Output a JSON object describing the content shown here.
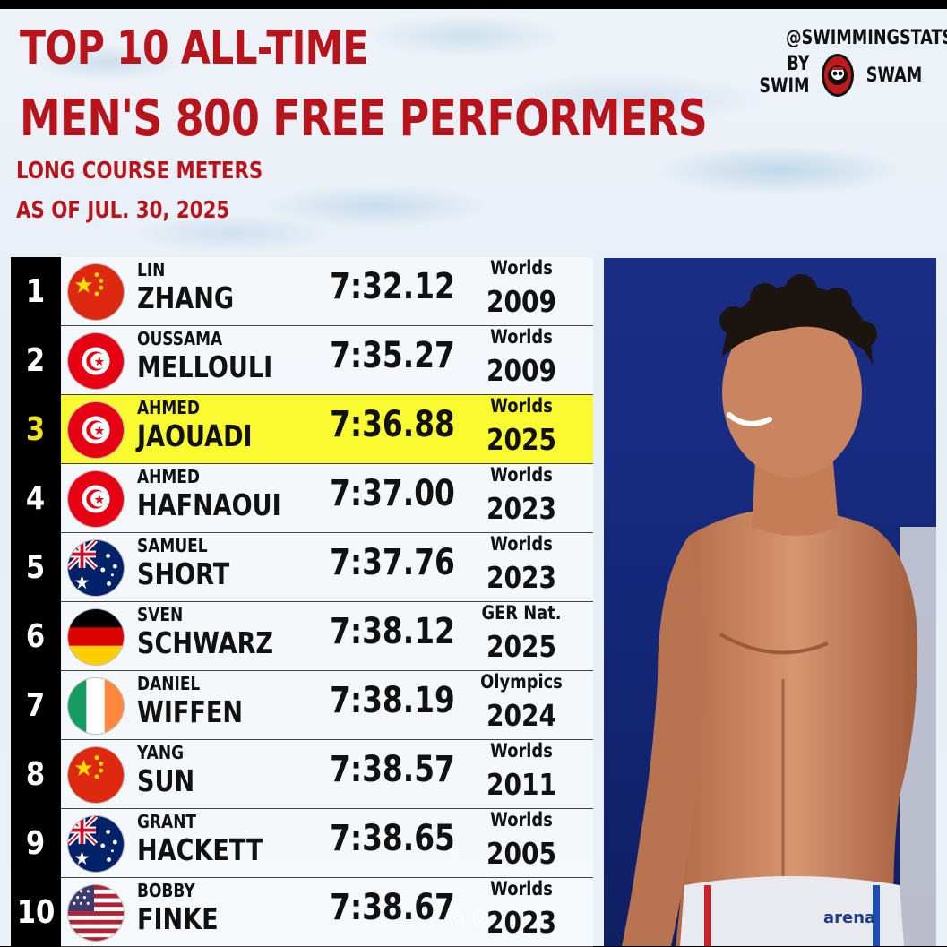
{
  "header": {
    "title_line1": "TOP 10 ALL-TIME",
    "title_line2": "MEN'S 800 FREE PERFORMERS",
    "subtitle_line1": "LONG COURSE METERS",
    "subtitle_line2": "AS OF JUL. 30, 2025"
  },
  "brand": {
    "handle": "@SWIMMINGSTATS",
    "by_prefix": "BY SWIM",
    "by_suffix": "SWAM"
  },
  "colors": {
    "title_red": "#b8141c",
    "highlight_yellow": "#fafa30",
    "rank_background": "#000000",
    "photo_background": "#1a2e86"
  },
  "rankings": [
    {
      "rank": "1",
      "first": "LIN",
      "last": "ZHANG",
      "time": "7:32.12",
      "meet": "Worlds",
      "year": "2009",
      "flag": "china"
    },
    {
      "rank": "2",
      "first": "OUSSAMA",
      "last": "MELLOULI",
      "time": "7:35.27",
      "meet": "Worlds",
      "year": "2009",
      "flag": "tunisia"
    },
    {
      "rank": "3",
      "first": "AHMED",
      "last": "JAOUADI",
      "time": "7:36.88",
      "meet": "Worlds",
      "year": "2025",
      "flag": "tunisia",
      "highlight": true
    },
    {
      "rank": "4",
      "first": "AHMED",
      "last": "HAFNAOUI",
      "time": "7:37.00",
      "meet": "Worlds",
      "year": "2023",
      "flag": "tunisia"
    },
    {
      "rank": "5",
      "first": "SAMUEL",
      "last": "SHORT",
      "time": "7:37.76",
      "meet": "Worlds",
      "year": "2023",
      "flag": "australia"
    },
    {
      "rank": "6",
      "first": "SVEN",
      "last": "SCHWARZ",
      "time": "7:38.12",
      "meet": "GER Nat.",
      "year": "2025",
      "flag": "germany"
    },
    {
      "rank": "7",
      "first": "DANIEL",
      "last": "WIFFEN",
      "time": "7:38.19",
      "meet": "Olympics",
      "year": "2024",
      "flag": "ireland"
    },
    {
      "rank": "8",
      "first": "YANG",
      "last": "SUN",
      "time": "7:38.57",
      "meet": "Worlds",
      "year": "2011",
      "flag": "china"
    },
    {
      "rank": "9",
      "first": "GRANT",
      "last": "HACKETT",
      "time": "7:38.65",
      "meet": "Worlds",
      "year": "2005",
      "flag": "australia"
    },
    {
      "rank": "10",
      "first": "BOBBY",
      "last": "FINKE",
      "time": "7:38.67",
      "meet": "Worlds",
      "year": "2023",
      "flag": "usa"
    }
  ],
  "photo": {
    "brand_text": "arena"
  }
}
